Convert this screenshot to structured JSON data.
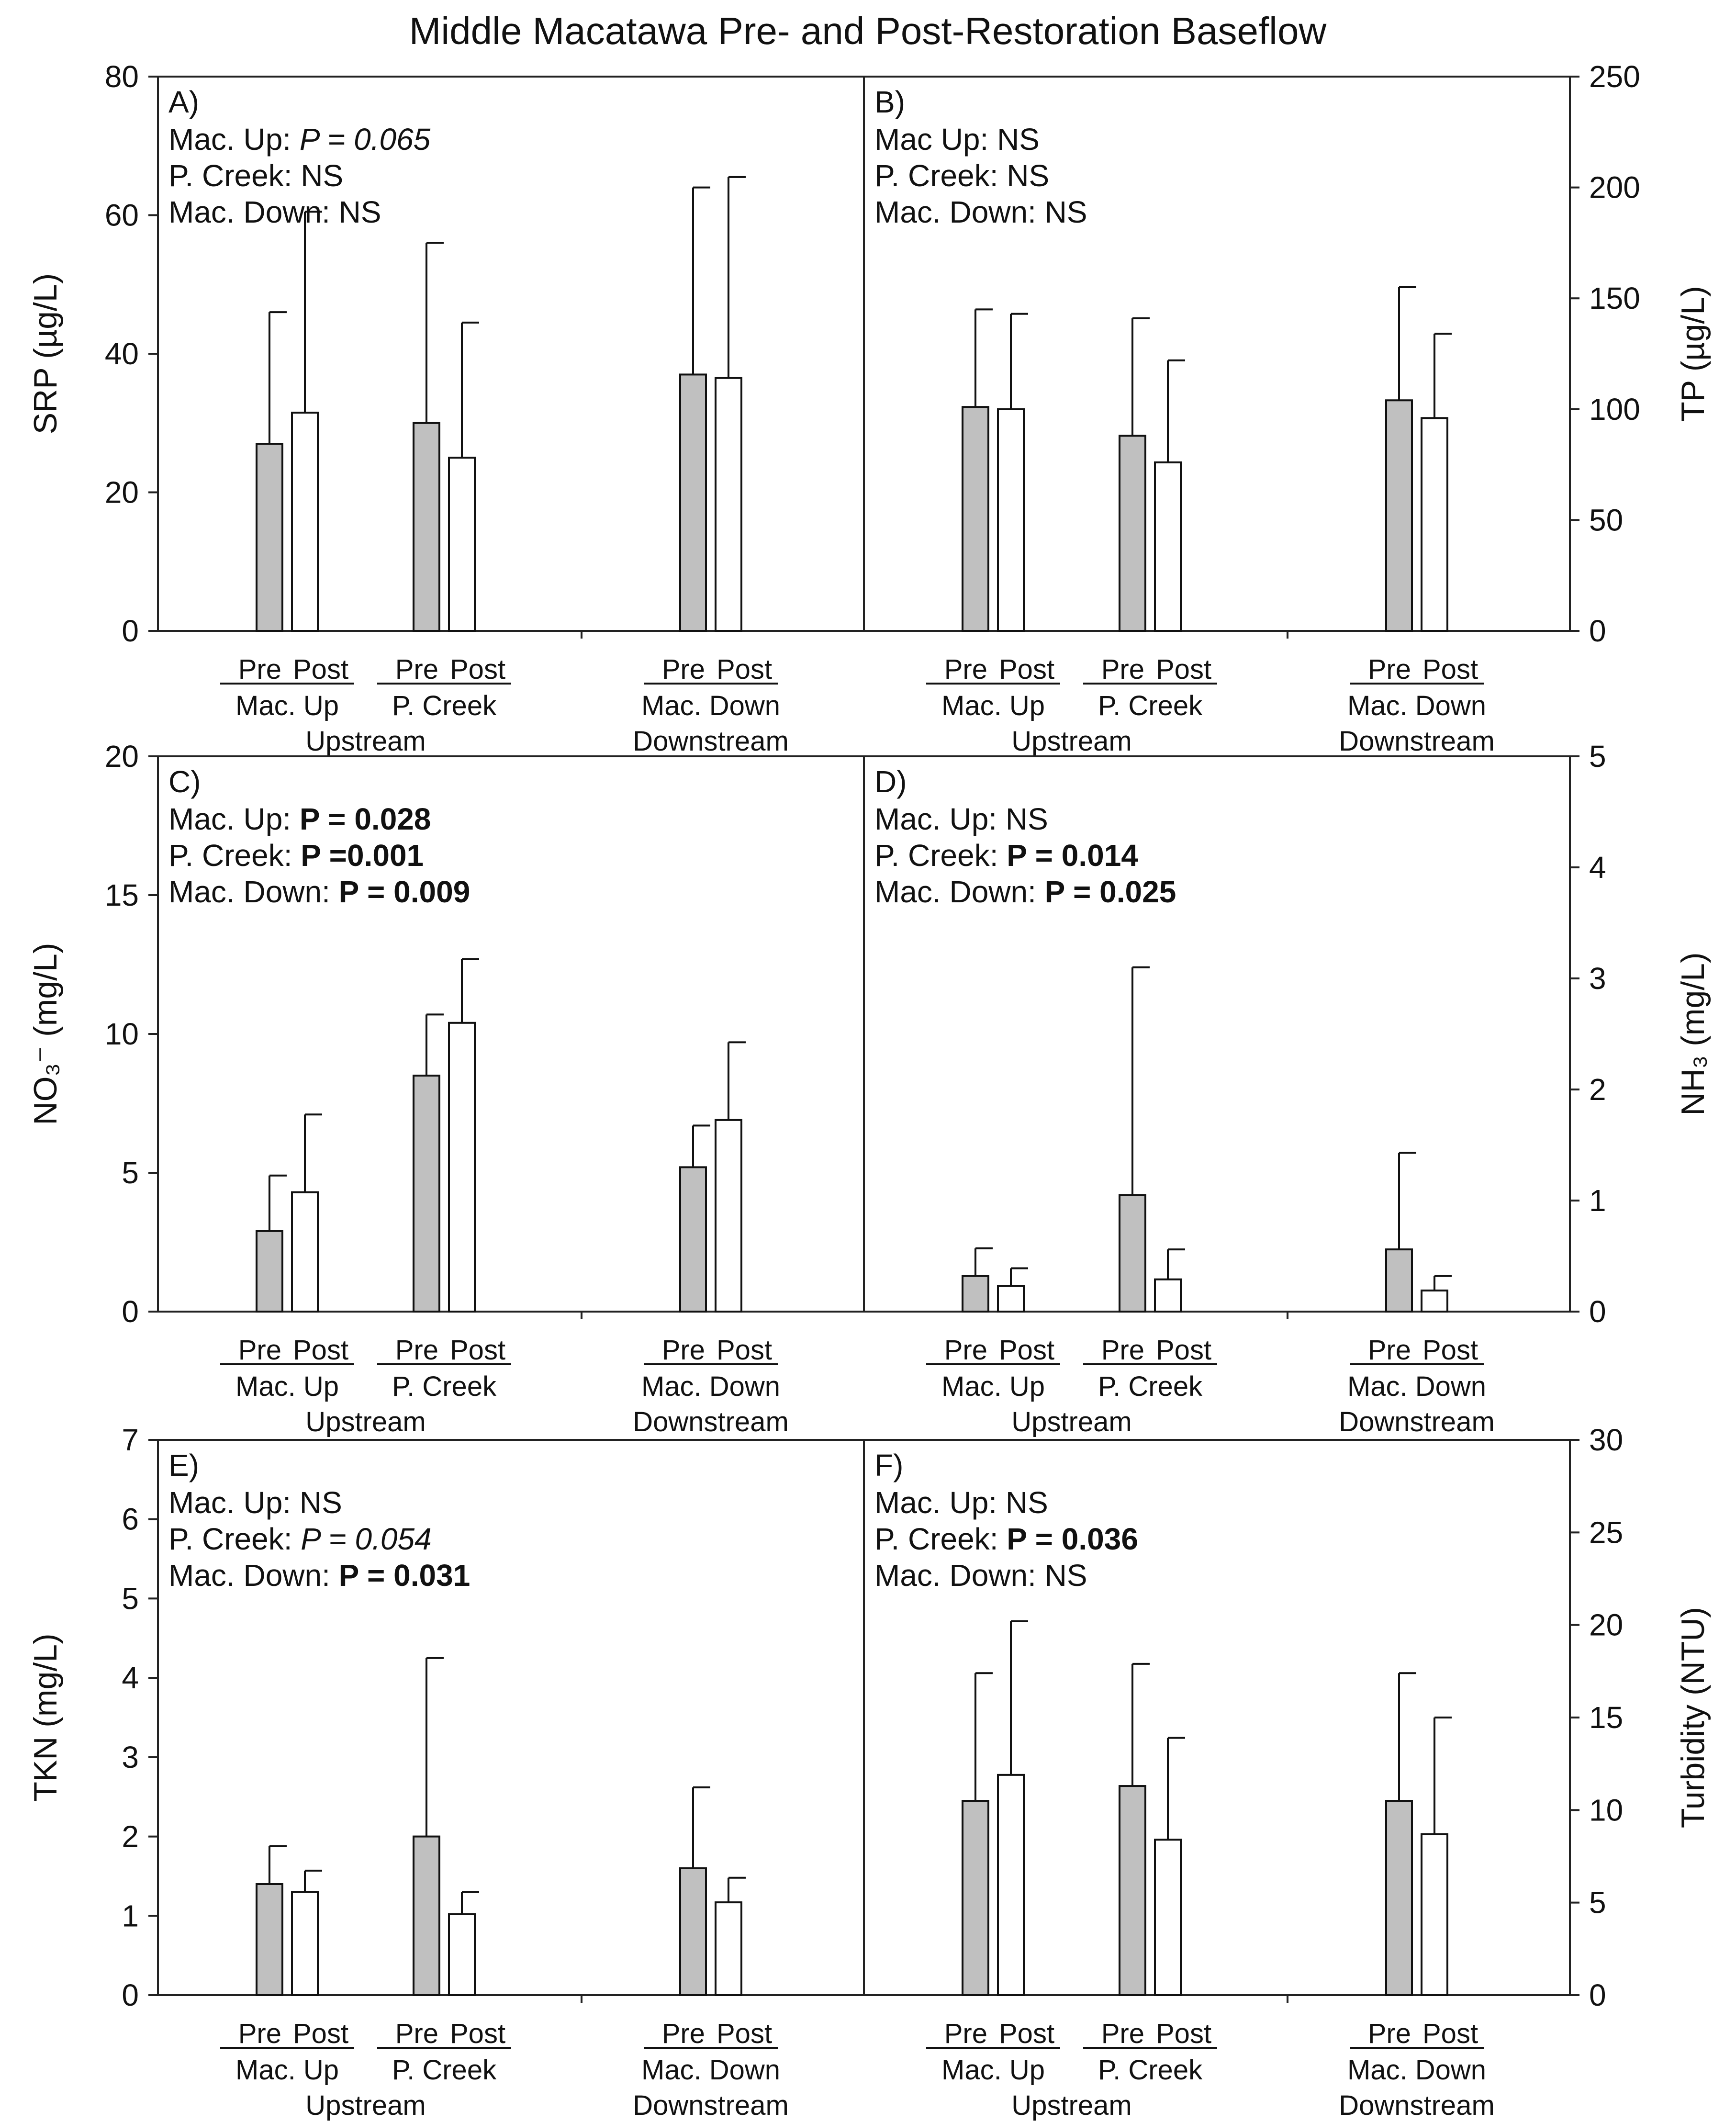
{
  "title": "Middle Macatawa Pre- and Post-Restoration Baseflow",
  "chart_data": [
    {
      "type": "bar",
      "panel": "A)",
      "ylabel": "SRP (µg/L)",
      "axis_side": "left",
      "ylim": [
        0,
        80
      ],
      "yticks": [
        0,
        20,
        40,
        60,
        80
      ],
      "yticklabels": [
        "0",
        "20",
        "40",
        "60",
        "80"
      ],
      "stats": [
        {
          "label": "Mac. Up: ",
          "value": "P = 0.065",
          "style": "italic"
        },
        {
          "label": "P. Creek: ",
          "value": "NS",
          "style": "normal"
        },
        {
          "label": "Mac. Down: ",
          "value": "NS",
          "style": "normal"
        }
      ],
      "series": [
        {
          "name": "Pre",
          "values": [
            27,
            30,
            37
          ],
          "errors": [
            19,
            26,
            27
          ]
        },
        {
          "name": "Post",
          "values": [
            31.5,
            25,
            36.5
          ],
          "errors": [
            29,
            19.5,
            29
          ]
        }
      ]
    },
    {
      "type": "bar",
      "panel": "B)",
      "ylabel": "TP (µg/L)",
      "axis_side": "right",
      "ylim": [
        0,
        250
      ],
      "yticks": [
        0,
        50,
        100,
        150,
        200,
        250
      ],
      "yticklabels": [
        "0",
        "50",
        "100",
        "150",
        "200",
        "250"
      ],
      "stats": [
        {
          "label": "Mac Up: ",
          "value": "NS",
          "style": "normal"
        },
        {
          "label": "P. Creek: ",
          "value": "NS",
          "style": "normal"
        },
        {
          "label": "Mac. Down: ",
          "value": "NS",
          "style": "normal"
        }
      ],
      "series": [
        {
          "name": "Pre",
          "values": [
            101,
            88,
            104
          ],
          "errors": [
            44,
            53,
            51
          ]
        },
        {
          "name": "Post",
          "values": [
            100,
            76,
            96
          ],
          "errors": [
            43,
            46,
            38
          ]
        }
      ]
    },
    {
      "type": "bar",
      "panel": "C)",
      "ylabel": "NO₃⁻ (mg/L)",
      "axis_side": "left",
      "ylim": [
        0,
        20
      ],
      "yticks": [
        0,
        5,
        10,
        15,
        20
      ],
      "yticklabels": [
        "0",
        "5",
        "10",
        "15",
        "20"
      ],
      "stats": [
        {
          "label": "Mac. Up: ",
          "value": "P = 0.028",
          "style": "bold"
        },
        {
          "label": "P. Creek: ",
          "value": "P =0.001",
          "style": "bold"
        },
        {
          "label": "Mac. Down: ",
          "value": "P = 0.009",
          "style": "bold"
        }
      ],
      "series": [
        {
          "name": "Pre",
          "values": [
            2.9,
            8.5,
            5.2
          ],
          "errors": [
            2.0,
            2.2,
            1.5
          ]
        },
        {
          "name": "Post",
          "values": [
            4.3,
            10.4,
            6.9
          ],
          "errors": [
            2.8,
            2.3,
            2.8
          ]
        }
      ]
    },
    {
      "type": "bar",
      "panel": "D)",
      "ylabel": "NH₃ (mg/L)",
      "axis_side": "right",
      "ylim": [
        0,
        5
      ],
      "yticks": [
        0,
        1,
        2,
        3,
        4,
        5
      ],
      "yticklabels": [
        "0",
        "1",
        "2",
        "3",
        "4",
        "5"
      ],
      "stats": [
        {
          "label": "Mac. Up: ",
          "value": "NS",
          "style": "normal"
        },
        {
          "label": "P. Creek: ",
          "value": "P = 0.014",
          "style": "bold"
        },
        {
          "label": "Mac. Down: ",
          "value": "P = 0.025",
          "style": "bold"
        }
      ],
      "series": [
        {
          "name": "Pre",
          "values": [
            0.32,
            1.05,
            0.56
          ],
          "errors": [
            0.25,
            2.05,
            0.87
          ]
        },
        {
          "name": "Post",
          "values": [
            0.23,
            0.29,
            0.19
          ],
          "errors": [
            0.16,
            0.27,
            0.13
          ]
        }
      ]
    },
    {
      "type": "bar",
      "panel": "E)",
      "ylabel": "TKN (mg/L)",
      "axis_side": "left",
      "ylim": [
        0,
        7
      ],
      "yticks": [
        0,
        1,
        2,
        3,
        4,
        5,
        6,
        7
      ],
      "yticklabels": [
        "0",
        "1",
        "2",
        "3",
        "4",
        "5",
        "6",
        "7"
      ],
      "stats": [
        {
          "label": "Mac. Up: ",
          "value": "NS",
          "style": "normal"
        },
        {
          "label": "P. Creek: ",
          "value": "P = 0.054",
          "style": "italic"
        },
        {
          "label": "Mac. Down: ",
          "value": "P = 0.031",
          "style": "bold"
        }
      ],
      "series": [
        {
          "name": "Pre",
          "values": [
            1.4,
            2.0,
            1.6
          ],
          "errors": [
            0.48,
            2.25,
            1.02
          ]
        },
        {
          "name": "Post",
          "values": [
            1.3,
            1.02,
            1.17
          ],
          "errors": [
            0.27,
            0.28,
            0.31
          ]
        }
      ]
    },
    {
      "type": "bar",
      "panel": "F)",
      "ylabel": "Turbidity (NTU)",
      "axis_side": "right",
      "ylim": [
        0,
        30
      ],
      "yticks": [
        0,
        5,
        10,
        15,
        20,
        25,
        30
      ],
      "yticklabels": [
        "0",
        "5",
        "10",
        "15",
        "20",
        "25",
        "30"
      ],
      "stats": [
        {
          "label": "Mac. Up: ",
          "value": "NS",
          "style": "normal"
        },
        {
          "label": "P. Creek: ",
          "value": "P = 0.036",
          "style": "bold"
        },
        {
          "label": "Mac. Down: ",
          "value": "NS",
          "style": "normal"
        }
      ],
      "series": [
        {
          "name": "Pre",
          "values": [
            10.5,
            11.3,
            10.5
          ],
          "errors": [
            6.9,
            6.6,
            6.9
          ]
        },
        {
          "name": "Post",
          "values": [
            11.9,
            8.4,
            8.7
          ],
          "errors": [
            8.3,
            5.5,
            6.3
          ]
        }
      ]
    }
  ],
  "x_groups": [
    {
      "pre": "Pre",
      "post": "Post",
      "site": "Mac. Up"
    },
    {
      "pre": "Pre",
      "post": "Post",
      "site": "P. Creek"
    },
    {
      "pre": "Pre",
      "post": "Post",
      "site": "Mac. Down"
    }
  ],
  "regions": [
    "Upstream",
    "Downstream"
  ],
  "colors": {
    "pre": "#c0c0c0",
    "post": "#ffffff"
  }
}
